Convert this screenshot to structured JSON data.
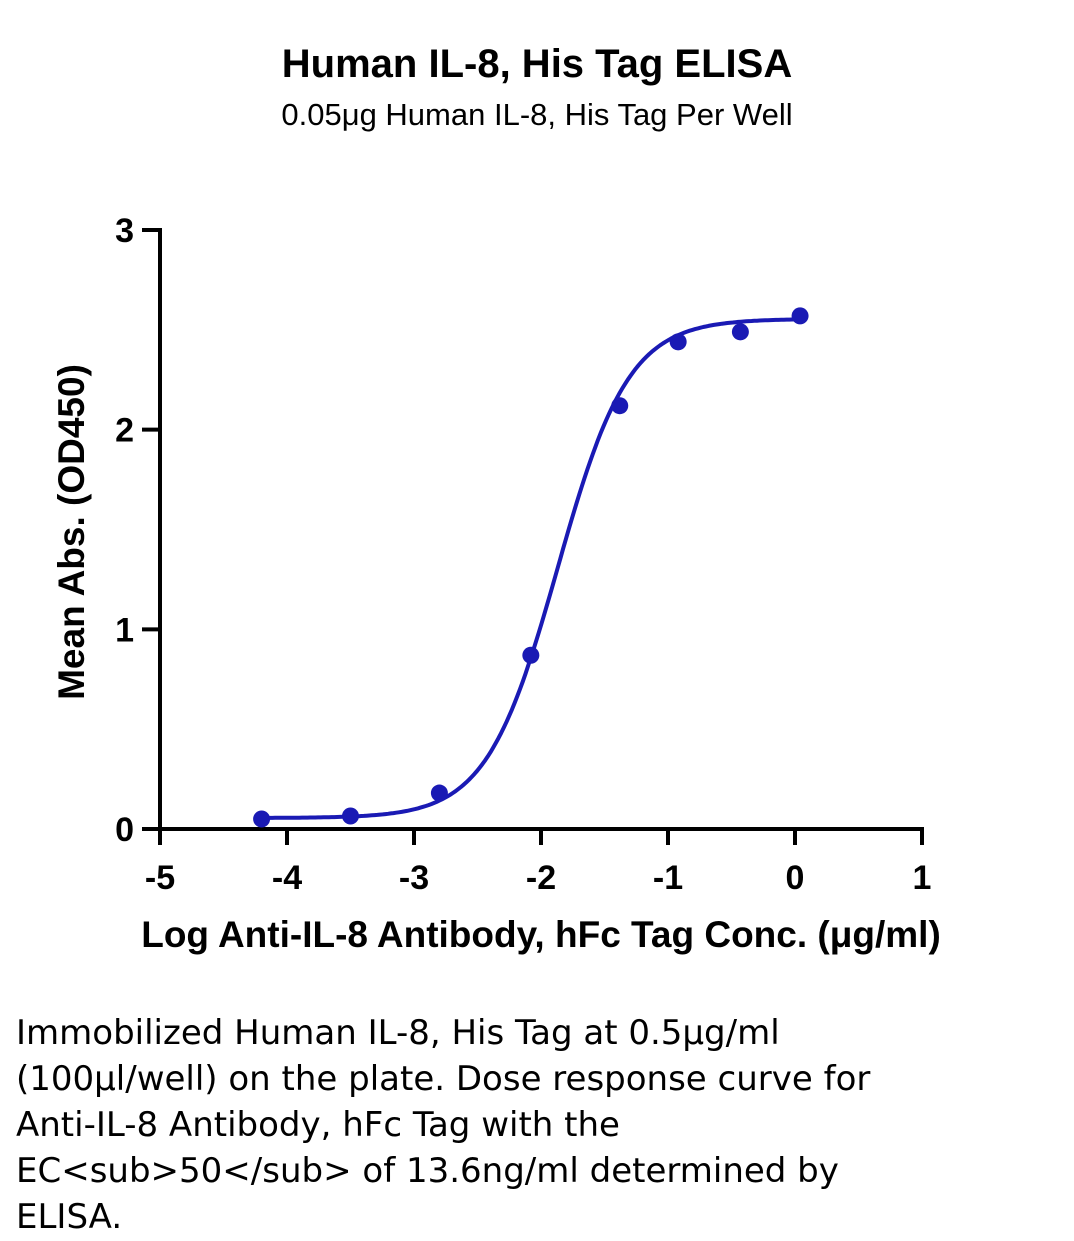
{
  "chart_data": {
    "type": "scatter",
    "title": "Human IL-8, His Tag ELISA",
    "subtitle": "0.05μg Human IL-8, His Tag Per Well",
    "xlabel": "Log Anti-IL-8 Antibody, hFc Tag Conc. (μg/ml)",
    "ylabel": "Mean Abs. (OD450)",
    "xlim": [
      -5,
      1
    ],
    "ylim": [
      0,
      3
    ],
    "xticks": [
      -5,
      -4,
      -3,
      -2,
      -1,
      0,
      1
    ],
    "yticks": [
      0,
      1,
      2,
      3
    ],
    "series": [
      {
        "x": [
          -4.2,
          -3.5,
          -2.8,
          -2.08,
          -1.38,
          -0.92,
          -0.43,
          0.04
        ],
        "y": [
          0.05,
          0.065,
          0.18,
          0.87,
          2.12,
          2.44,
          2.49,
          2.57
        ],
        "color": "#1a1ab4",
        "fit": {
          "model": "4PL",
          "bottom": 0.055,
          "top": 2.555,
          "logEC50": -1.87,
          "hill": 1.55,
          "range": [
            -4.2,
            0.04
          ]
        }
      }
    ],
    "grid": false,
    "legend": "none"
  },
  "caption": "Immobilized Human IL-8, His Tag at 0.5μg/ml (100μl/well) on the plate. Dose response curve for Anti-IL-8 Antibody, hFc Tag with the EC<sub>50</sub> of 13.6ng/ml determined by ELISA."
}
